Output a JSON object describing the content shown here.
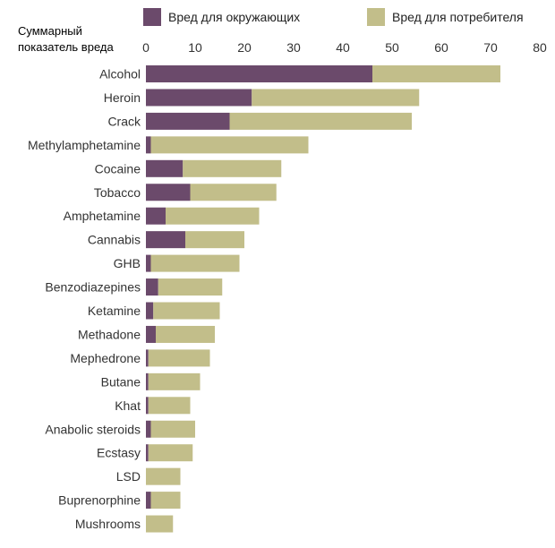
{
  "chart_data": {
    "type": "bar",
    "orientation": "horizontal",
    "stacked": true,
    "axis_title": [
      "Суммарный",
      "показатель вреда"
    ],
    "xlim": [
      0,
      80
    ],
    "ticks": [
      0,
      10,
      20,
      30,
      40,
      50,
      60,
      70,
      80
    ],
    "grid": false,
    "legend_position": "top",
    "categories": [
      "Alcohol",
      "Heroin",
      "Crack",
      "Methylamphetamine",
      "Cocaine",
      "Tobacco",
      "Amphetamine",
      "Cannabis",
      "GHB",
      "Benzodiazepines",
      "Ketamine",
      "Methadone",
      "Mephedrone",
      "Butane",
      "Khat",
      "Anabolic steroids",
      "Ecstasy",
      "LSD",
      "Buprenorphine",
      "Mushrooms"
    ],
    "series": [
      {
        "name": "Вред для окружающих",
        "color": "#6b4a6b",
        "values": [
          46,
          21.5,
          17,
          1,
          7.5,
          9,
          4,
          8,
          1,
          2.5,
          1.5,
          2,
          0.5,
          0.5,
          0.5,
          1,
          0.5,
          0,
          1,
          0
        ]
      },
      {
        "name": "Вред для потребителя",
        "color": "#c2be8a",
        "values": [
          26,
          34,
          37,
          32,
          20,
          17.5,
          19,
          12,
          18,
          13,
          13.5,
          12,
          12.5,
          10.5,
          8.5,
          9,
          9,
          7,
          6,
          5.5
        ]
      }
    ]
  }
}
